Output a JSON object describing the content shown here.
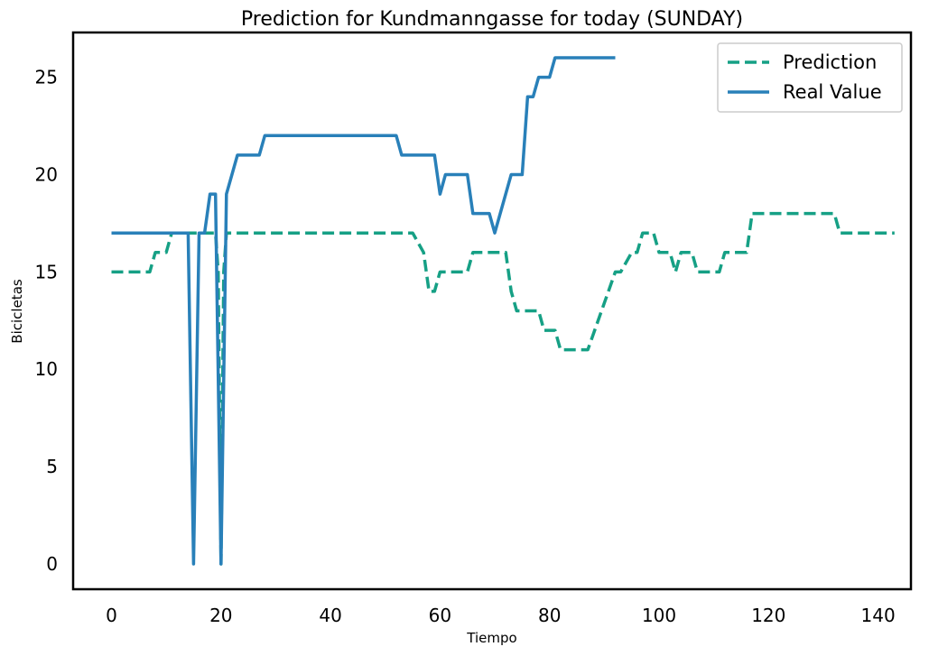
{
  "chart_data": {
    "type": "line",
    "title": "Prediction for Kundmanngasse for today (SUNDAY)",
    "xlabel": "Tiempo",
    "ylabel": "Bicicletas",
    "xlim": [
      -7,
      146
    ],
    "ylim": [
      -1.3,
      27.3
    ],
    "xticks": [
      0,
      20,
      40,
      60,
      80,
      100,
      120,
      140
    ],
    "yticks": [
      0,
      5,
      10,
      15,
      20,
      25
    ],
    "grid": false,
    "legend_position": "top-right",
    "series": [
      {
        "name": "Prediction",
        "color": "#16a085",
        "style": "dashed",
        "x": [
          0,
          7,
          8,
          10,
          11,
          19,
          19.5,
          20,
          20.5,
          21,
          55,
          57,
          58,
          59,
          60,
          65,
          66,
          72,
          73,
          74,
          77,
          78,
          79,
          81,
          82,
          87,
          92,
          93,
          95,
          96,
          97,
          99,
          100,
          102,
          103,
          104,
          106,
          107,
          111,
          112,
          116,
          117,
          132,
          133,
          143
        ],
        "values": [
          15,
          15,
          16,
          16,
          17,
          17,
          15,
          0,
          15,
          17,
          17,
          16,
          14,
          14,
          15,
          15,
          16,
          16,
          14,
          13,
          13,
          13,
          12,
          12,
          11,
          11,
          15,
          15,
          16,
          16,
          17,
          17,
          16,
          16,
          15,
          16,
          16,
          15,
          15,
          16,
          16,
          18,
          18,
          17,
          17
        ]
      },
      {
        "name": "Real Value",
        "color": "#2980b9",
        "style": "solid",
        "x": [
          0,
          14,
          15,
          16,
          17,
          18,
          19,
          20,
          21,
          23,
          27,
          28,
          52,
          53,
          59,
          60,
          61,
          65,
          66,
          69,
          70,
          73,
          75,
          76,
          77,
          78,
          80,
          81,
          92
        ],
        "values": [
          17,
          17,
          0,
          17,
          17,
          19,
          19,
          0,
          19,
          21,
          21,
          22,
          22,
          21,
          21,
          19,
          20,
          20,
          18,
          18,
          17,
          20,
          20,
          24,
          24,
          25,
          25,
          26,
          26
        ]
      }
    ]
  }
}
